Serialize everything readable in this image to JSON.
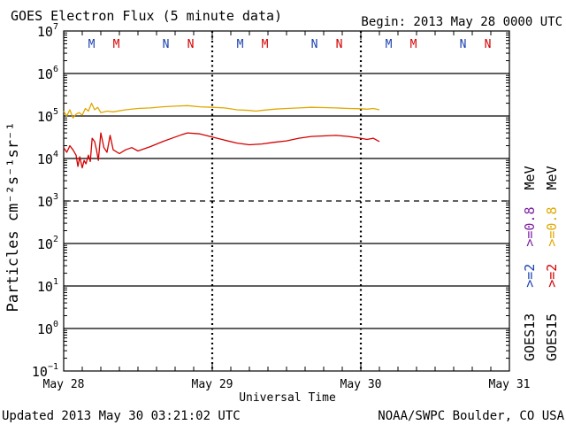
{
  "header": {
    "title": "GOES Electron Flux (5 minute data)",
    "begin": "Begin: 2013 May 28 0000 UTC"
  },
  "footer": {
    "updated": "Updated 2013 May 30 03:21:02 UTC",
    "source": "NOAA/SWPC Boulder, CO USA"
  },
  "colors": {
    "goes13_2mev": "#1a3fae",
    "goes13_08mev": "#7b1fa2",
    "goes15_2mev": "#d40000",
    "goes15_08mev": "#e0a800",
    "marker_M": "#1a3fae",
    "marker_N_goes13": "#1a3fae",
    "marker_M_goes15": "#d40000",
    "marker_N_goes15": "#d40000",
    "axis": "#000000"
  },
  "legend": {
    "goes13_label": "GOES13",
    "goes15_label": "GOES15",
    "goes13_2mev": ">=2",
    "goes13_08mev": ">=0.8",
    "goes15_2mev": ">=2",
    "goes15_08mev": ">=0.8",
    "mev": "MeV"
  },
  "chart_data": {
    "type": "line",
    "title": "GOES Electron Flux (5 minute data)",
    "xlabel": "Universal Time",
    "ylabel": "Particles cm⁻²s⁻¹sr⁻¹",
    "yscale": "log",
    "ylim": [
      0.1,
      10000000
    ],
    "xlim_hours": [
      0,
      72
    ],
    "threshold": 1000,
    "x_tick_labels": [
      {
        "hour": 0,
        "label": "May 28"
      },
      {
        "hour": 24,
        "label": "May 29"
      },
      {
        "hour": 48,
        "label": "May 30"
      },
      {
        "hour": 72,
        "label": "May 31"
      }
    ],
    "y_tick_labels": [
      {
        "value": 10000000,
        "base": "10",
        "exp": "7"
      },
      {
        "value": 1000000,
        "base": "10",
        "exp": "6"
      },
      {
        "value": 100000,
        "base": "10",
        "exp": "5"
      },
      {
        "value": 10000,
        "base": "10",
        "exp": "4"
      },
      {
        "value": 1000,
        "base": "10",
        "exp": "3"
      },
      {
        "value": 100,
        "base": "10",
        "exp": "2"
      },
      {
        "value": 10,
        "base": "10",
        "exp": "1"
      },
      {
        "value": 1,
        "base": "10",
        "exp": "0"
      },
      {
        "value": 0.1,
        "base": "10",
        "exp": "−1"
      }
    ],
    "markers": [
      {
        "hour": 4.5,
        "label": "M",
        "sat": "goes13"
      },
      {
        "hour": 8.5,
        "label": "M",
        "sat": "goes15"
      },
      {
        "hour": 16.5,
        "label": "N",
        "sat": "goes13"
      },
      {
        "hour": 20.5,
        "label": "N",
        "sat": "goes15"
      },
      {
        "hour": 28.5,
        "label": "M",
        "sat": "goes13"
      },
      {
        "hour": 32.5,
        "label": "M",
        "sat": "goes15"
      },
      {
        "hour": 40.5,
        "label": "N",
        "sat": "goes13"
      },
      {
        "hour": 44.5,
        "label": "N",
        "sat": "goes15"
      },
      {
        "hour": 52.5,
        "label": "M",
        "sat": "goes13"
      },
      {
        "hour": 56.5,
        "label": "M",
        "sat": "goes15"
      },
      {
        "hour": 64.5,
        "label": "N",
        "sat": "goes13"
      },
      {
        "hour": 68.5,
        "label": "N",
        "sat": "goes15"
      }
    ],
    "series": [
      {
        "name": "GOES15 >=0.8 MeV",
        "color_key": "goes15_08mev",
        "x": [
          0,
          0.5,
          1,
          1.5,
          2,
          2.5,
          3,
          3.5,
          4,
          4.5,
          5,
          5.5,
          6,
          7,
          8,
          10,
          12,
          14,
          16,
          18,
          20,
          22,
          24,
          26,
          28,
          30,
          31,
          32,
          34,
          36,
          38,
          40,
          42,
          44,
          46,
          48,
          49,
          50,
          51
        ],
        "y": [
          130000,
          100000,
          140000,
          90000,
          110000,
          120000,
          105000,
          150000,
          130000,
          200000,
          140000,
          160000,
          120000,
          130000,
          125000,
          140000,
          150000,
          155000,
          165000,
          170000,
          175000,
          165000,
          160000,
          155000,
          140000,
          135000,
          130000,
          135000,
          145000,
          150000,
          155000,
          160000,
          158000,
          155000,
          150000,
          148000,
          145000,
          150000,
          140000
        ]
      },
      {
        "name": "GOES15 >=2 MeV",
        "color_key": "goes15_2mev",
        "x": [
          0,
          0.5,
          1,
          1.5,
          2,
          2.3,
          2.6,
          3,
          3.3,
          3.6,
          4,
          4.3,
          4.6,
          5,
          5.3,
          5.6,
          6,
          6.5,
          7,
          7.5,
          8,
          9,
          10,
          11,
          12,
          14,
          16,
          18,
          19,
          20,
          22,
          24,
          26,
          28,
          30,
          32,
          34,
          36,
          38,
          40,
          42,
          44,
          46,
          48,
          49,
          50,
          51
        ],
        "y": [
          18000,
          14000,
          20000,
          16000,
          12000,
          6500,
          11000,
          6000,
          9000,
          7500,
          12000,
          8500,
          30000,
          25000,
          16000,
          9000,
          40000,
          18000,
          14000,
          35000,
          16000,
          13000,
          16000,
          18000,
          15000,
          19000,
          25000,
          32000,
          36000,
          40000,
          38000,
          32000,
          27000,
          23000,
          21000,
          22000,
          24000,
          26000,
          30000,
          33000,
          34000,
          35000,
          33000,
          30000,
          28000,
          30000,
          25000
        ]
      }
    ]
  }
}
